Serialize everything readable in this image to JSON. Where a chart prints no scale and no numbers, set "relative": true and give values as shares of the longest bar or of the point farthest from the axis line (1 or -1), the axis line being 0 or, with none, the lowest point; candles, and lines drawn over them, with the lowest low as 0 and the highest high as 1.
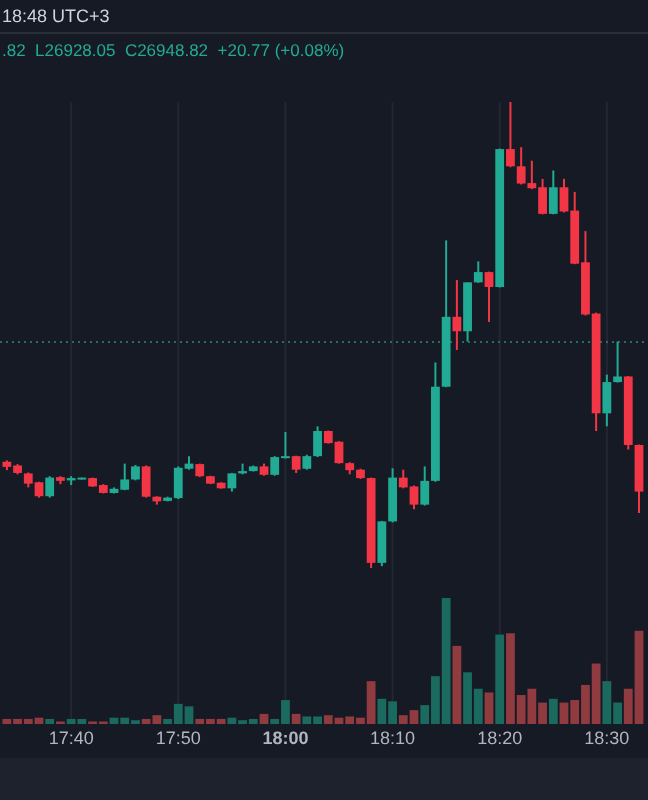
{
  "chart_data": [
    {
      "type": "candlestick",
      "relative": true,
      "grid": "x",
      "tick_labels": false,
      "annotations": [
        "18:48 UTC+3",
        ".82  L26928.05  C26948.82  +20.77 (+0.08%)"
      ],
      "x": [
        17.5667,
        17.5833,
        17.6,
        17.6167,
        17.6333,
        17.65,
        17.6667,
        17.6833,
        17.7,
        17.7167,
        17.7333,
        17.75,
        17.7667,
        17.7833,
        17.8,
        17.8167,
        17.8333,
        17.85,
        17.8667,
        17.8833,
        17.9,
        17.9167,
        17.9333,
        17.95,
        17.9667,
        17.9833,
        18,
        18.0167,
        18.0333,
        18.05,
        18.0667,
        18.0833,
        18.1,
        18.1167,
        18.1333,
        18.15,
        18.1667,
        18.1833,
        18.2,
        18.2167,
        18.2333,
        18.25,
        18.2667,
        18.2833,
        18.3,
        18.3167,
        18.3333,
        18.35,
        18.3667,
        18.3833,
        18.4,
        18.4167,
        18.4333,
        18.45,
        18.4667,
        18.4833,
        18.5,
        18.5167,
        18.5333,
        18.55
      ],
      "xlim": [
        17.556,
        18.564
      ],
      "xticks": [
        {
          "value": 17.6667,
          "label": null
        },
        {
          "value": 17.8333,
          "label": null
        },
        {
          "value": 18,
          "label": null
        },
        {
          "value": 18.1667,
          "label": null
        },
        {
          "value": 18.3333,
          "label": null
        },
        {
          "value": 18.5,
          "label": null
        }
      ],
      "ohlc": [
        [
          0.228,
          0.231,
          0.21,
          0.217
        ],
        [
          0.22,
          0.223,
          0.201,
          0.204
        ],
        [
          0.203,
          0.205,
          0.173,
          0.181
        ],
        [
          0.184,
          0.185,
          0.151,
          0.154
        ],
        [
          0.154,
          0.197,
          0.151,
          0.194
        ],
        [
          0.195,
          0.197,
          0.18,
          0.187
        ],
        [
          0.188,
          0.197,
          0.178,
          0.193
        ],
        [
          0.191,
          0.194,
          0.19,
          0.194
        ],
        [
          0.193,
          0.194,
          0.174,
          0.175
        ],
        [
          0.178,
          0.18,
          0.16,
          0.161
        ],
        [
          0.161,
          0.173,
          0.16,
          0.17
        ],
        [
          0.168,
          0.224,
          0.167,
          0.19
        ],
        [
          0.19,
          0.221,
          0.188,
          0.218
        ],
        [
          0.218,
          0.22,
          0.151,
          0.153
        ],
        [
          0.153,
          0.154,
          0.136,
          0.143
        ],
        [
          0.144,
          0.153,
          0.143,
          0.151
        ],
        [
          0.15,
          0.218,
          0.148,
          0.215
        ],
        [
          0.213,
          0.24,
          0.211,
          0.224
        ],
        [
          0.223,
          0.224,
          0.195,
          0.197
        ],
        [
          0.197,
          0.198,
          0.18,
          0.181
        ],
        [
          0.183,
          0.184,
          0.17,
          0.171
        ],
        [
          0.171,
          0.204,
          0.164,
          0.203
        ],
        [
          0.203,
          0.224,
          0.201,
          0.208
        ],
        [
          0.208,
          0.22,
          0.207,
          0.218
        ],
        [
          0.218,
          0.224,
          0.198,
          0.2
        ],
        [
          0.2,
          0.24,
          0.198,
          0.238
        ],
        [
          0.238,
          0.292,
          0.235,
          0.24
        ],
        [
          0.24,
          0.241,
          0.204,
          0.211
        ],
        [
          0.213,
          0.243,
          0.211,
          0.24
        ],
        [
          0.24,
          0.304,
          0.238,
          0.294
        ],
        [
          0.294,
          0.295,
          0.267,
          0.268
        ],
        [
          0.271,
          0.272,
          0.224,
          0.225
        ],
        [
          0.225,
          0.227,
          0.201,
          0.21
        ],
        [
          0.211,
          0.213,
          0.191,
          0.193
        ],
        [
          0.193,
          0.194,
          0,
          0.011
        ],
        [
          0.011,
          0.101,
          0.004,
          0.1
        ],
        [
          0.1,
          0.214,
          0.098,
          0.194
        ],
        [
          0.194,
          0.211,
          0.171,
          0.173
        ],
        [
          0.175,
          0.177,
          0.126,
          0.136
        ],
        [
          0.136,
          0.218,
          0.134,
          0.187
        ],
        [
          0.187,
          0.441,
          0.185,
          0.389
        ],
        [
          0.389,
          0.703,
          0.388,
          0.539
        ],
        [
          0.539,
          0.618,
          0.468,
          0.508
        ],
        [
          0.508,
          0.613,
          0.486,
          0.613
        ],
        [
          0.613,
          0.658,
          0.612,
          0.635
        ],
        [
          0.635,
          0.636,
          0.528,
          0.603
        ],
        [
          0.603,
          0.9,
          0.602,
          0.899
        ],
        [
          0.899,
          1,
          0.86,
          0.862
        ],
        [
          0.862,
          0.903,
          0.823,
          0.825
        ],
        [
          0.826,
          0.874,
          0.813,
          0.815
        ],
        [
          0.817,
          0.835,
          0.759,
          0.76
        ],
        [
          0.76,
          0.853,
          0.759,
          0.817
        ],
        [
          0.817,
          0.835,
          0.763,
          0.765
        ],
        [
          0.767,
          0.807,
          0.652,
          0.653
        ],
        [
          0.656,
          0.723,
          0.542,
          0.544
        ],
        [
          0.546,
          0.548,
          0.294,
          0.332
        ],
        [
          0.332,
          0.415,
          0.304,
          0.399
        ],
        [
          0.399,
          0.486,
          0.398,
          0.411
        ],
        [
          0.411,
          0.412,
          0.254,
          0.264
        ],
        [
          0.264,
          0.265,
          0.118,
          0.164
        ]
      ],
      "colors": [
        "#f23645",
        "#f23645",
        "#f23645",
        "#f23645",
        "#22ab94",
        "#f23645",
        "#22ab94",
        "#22ab94",
        "#f23645",
        "#f23645",
        "#22ab94",
        "#22ab94",
        "#22ab94",
        "#f23645",
        "#f23645",
        "#22ab94",
        "#22ab94",
        "#22ab94",
        "#f23645",
        "#f23645",
        "#f23645",
        "#22ab94",
        "#22ab94",
        "#22ab94",
        "#f23645",
        "#22ab94",
        "#22ab94",
        "#f23645",
        "#22ab94",
        "#22ab94",
        "#f23645",
        "#f23645",
        "#f23645",
        "#f23645",
        "#f23645",
        "#22ab94",
        "#22ab94",
        "#f23645",
        "#f23645",
        "#22ab94",
        "#22ab94",
        "#22ab94",
        "#f23645",
        "#22ab94",
        "#22ab94",
        "#f23645",
        "#22ab94",
        "#f23645",
        "#f23645",
        "#f23645",
        "#f23645",
        "#22ab94",
        "#f23645",
        "#f23645",
        "#f23645",
        "#f23645",
        "#22ab94",
        "#22ab94",
        "#f23645",
        "#f23645"
      ],
      "ref_lines": [
        {
          "axis": "y",
          "value": 0.485,
          "color": "#2a6b62",
          "line_style": "dotted"
        }
      ]
    },
    {
      "type": "bar",
      "relative": true,
      "grid": "x",
      "tick_labels": "x",
      "x": [
        17.5667,
        17.5833,
        17.6,
        17.6167,
        17.6333,
        17.65,
        17.6667,
        17.6833,
        17.7,
        17.7167,
        17.7333,
        17.75,
        17.7667,
        17.7833,
        17.8,
        17.8167,
        17.8333,
        17.85,
        17.8667,
        17.8833,
        17.9,
        17.9167,
        17.9333,
        17.95,
        17.9667,
        17.9833,
        18,
        18.0167,
        18.0333,
        18.05,
        18.0667,
        18.0833,
        18.1,
        18.1167,
        18.1333,
        18.15,
        18.1667,
        18.1833,
        18.2,
        18.2167,
        18.2333,
        18.25,
        18.2667,
        18.2833,
        18.3,
        18.3167,
        18.3333,
        18.35,
        18.3667,
        18.3833,
        18.4,
        18.4167,
        18.4333,
        18.45,
        18.4667,
        18.4833,
        18.5,
        18.5167,
        18.5333,
        18.55
      ],
      "xlim": [
        17.556,
        18.564
      ],
      "xticks": [
        {
          "value": 17.6667,
          "label": "17:40"
        },
        {
          "value": 17.8333,
          "label": "17:50"
        },
        {
          "value": 18,
          "label": "18:00"
        },
        {
          "value": 18.1667,
          "label": "18:10"
        },
        {
          "value": 18.3333,
          "label": "18:20"
        },
        {
          "value": 18.5,
          "label": "18:30"
        }
      ],
      "values": [
        0.04,
        0.04,
        0.04,
        0.05,
        0.04,
        0.02,
        0.04,
        0.04,
        0.02,
        0.02,
        0.05,
        0.05,
        0.03,
        0.04,
        0.07,
        0.04,
        0.16,
        0.14,
        0.04,
        0.04,
        0.04,
        0.05,
        0.03,
        0.04,
        0.08,
        0.04,
        0.19,
        0.08,
        0.06,
        0.06,
        0.07,
        0.05,
        0.06,
        0.05,
        0.34,
        0.2,
        0.18,
        0.07,
        0.11,
        0.15,
        0.38,
        1,
        0.62,
        0.41,
        0.28,
        0.25,
        0.71,
        0.72,
        0.23,
        0.28,
        0.17,
        0.2,
        0.17,
        0.19,
        0.31,
        0.48,
        0.34,
        0.17,
        0.28,
        0.74
      ],
      "colors": [
        "#8f3b40",
        "#8f3b40",
        "#8f3b40",
        "#8f3b40",
        "#1b6a5f",
        "#8f3b40",
        "#1b6a5f",
        "#1b6a5f",
        "#8f3b40",
        "#8f3b40",
        "#1b6a5f",
        "#1b6a5f",
        "#1b6a5f",
        "#8f3b40",
        "#8f3b40",
        "#1b6a5f",
        "#1b6a5f",
        "#1b6a5f",
        "#8f3b40",
        "#8f3b40",
        "#8f3b40",
        "#1b6a5f",
        "#1b6a5f",
        "#1b6a5f",
        "#8f3b40",
        "#1b6a5f",
        "#1b6a5f",
        "#8f3b40",
        "#1b6a5f",
        "#1b6a5f",
        "#8f3b40",
        "#8f3b40",
        "#8f3b40",
        "#8f3b40",
        "#8f3b40",
        "#1b6a5f",
        "#1b6a5f",
        "#8f3b40",
        "#8f3b40",
        "#1b6a5f",
        "#1b6a5f",
        "#1b6a5f",
        "#8f3b40",
        "#1b6a5f",
        "#1b6a5f",
        "#8f3b40",
        "#1b6a5f",
        "#8f3b40",
        "#8f3b40",
        "#8f3b40",
        "#8f3b40",
        "#1b6a5f",
        "#8f3b40",
        "#8f3b40",
        "#8f3b40",
        "#8f3b40",
        "#1b6a5f",
        "#1b6a5f",
        "#8f3b40",
        "#8f3b40"
      ]
    }
  ]
}
